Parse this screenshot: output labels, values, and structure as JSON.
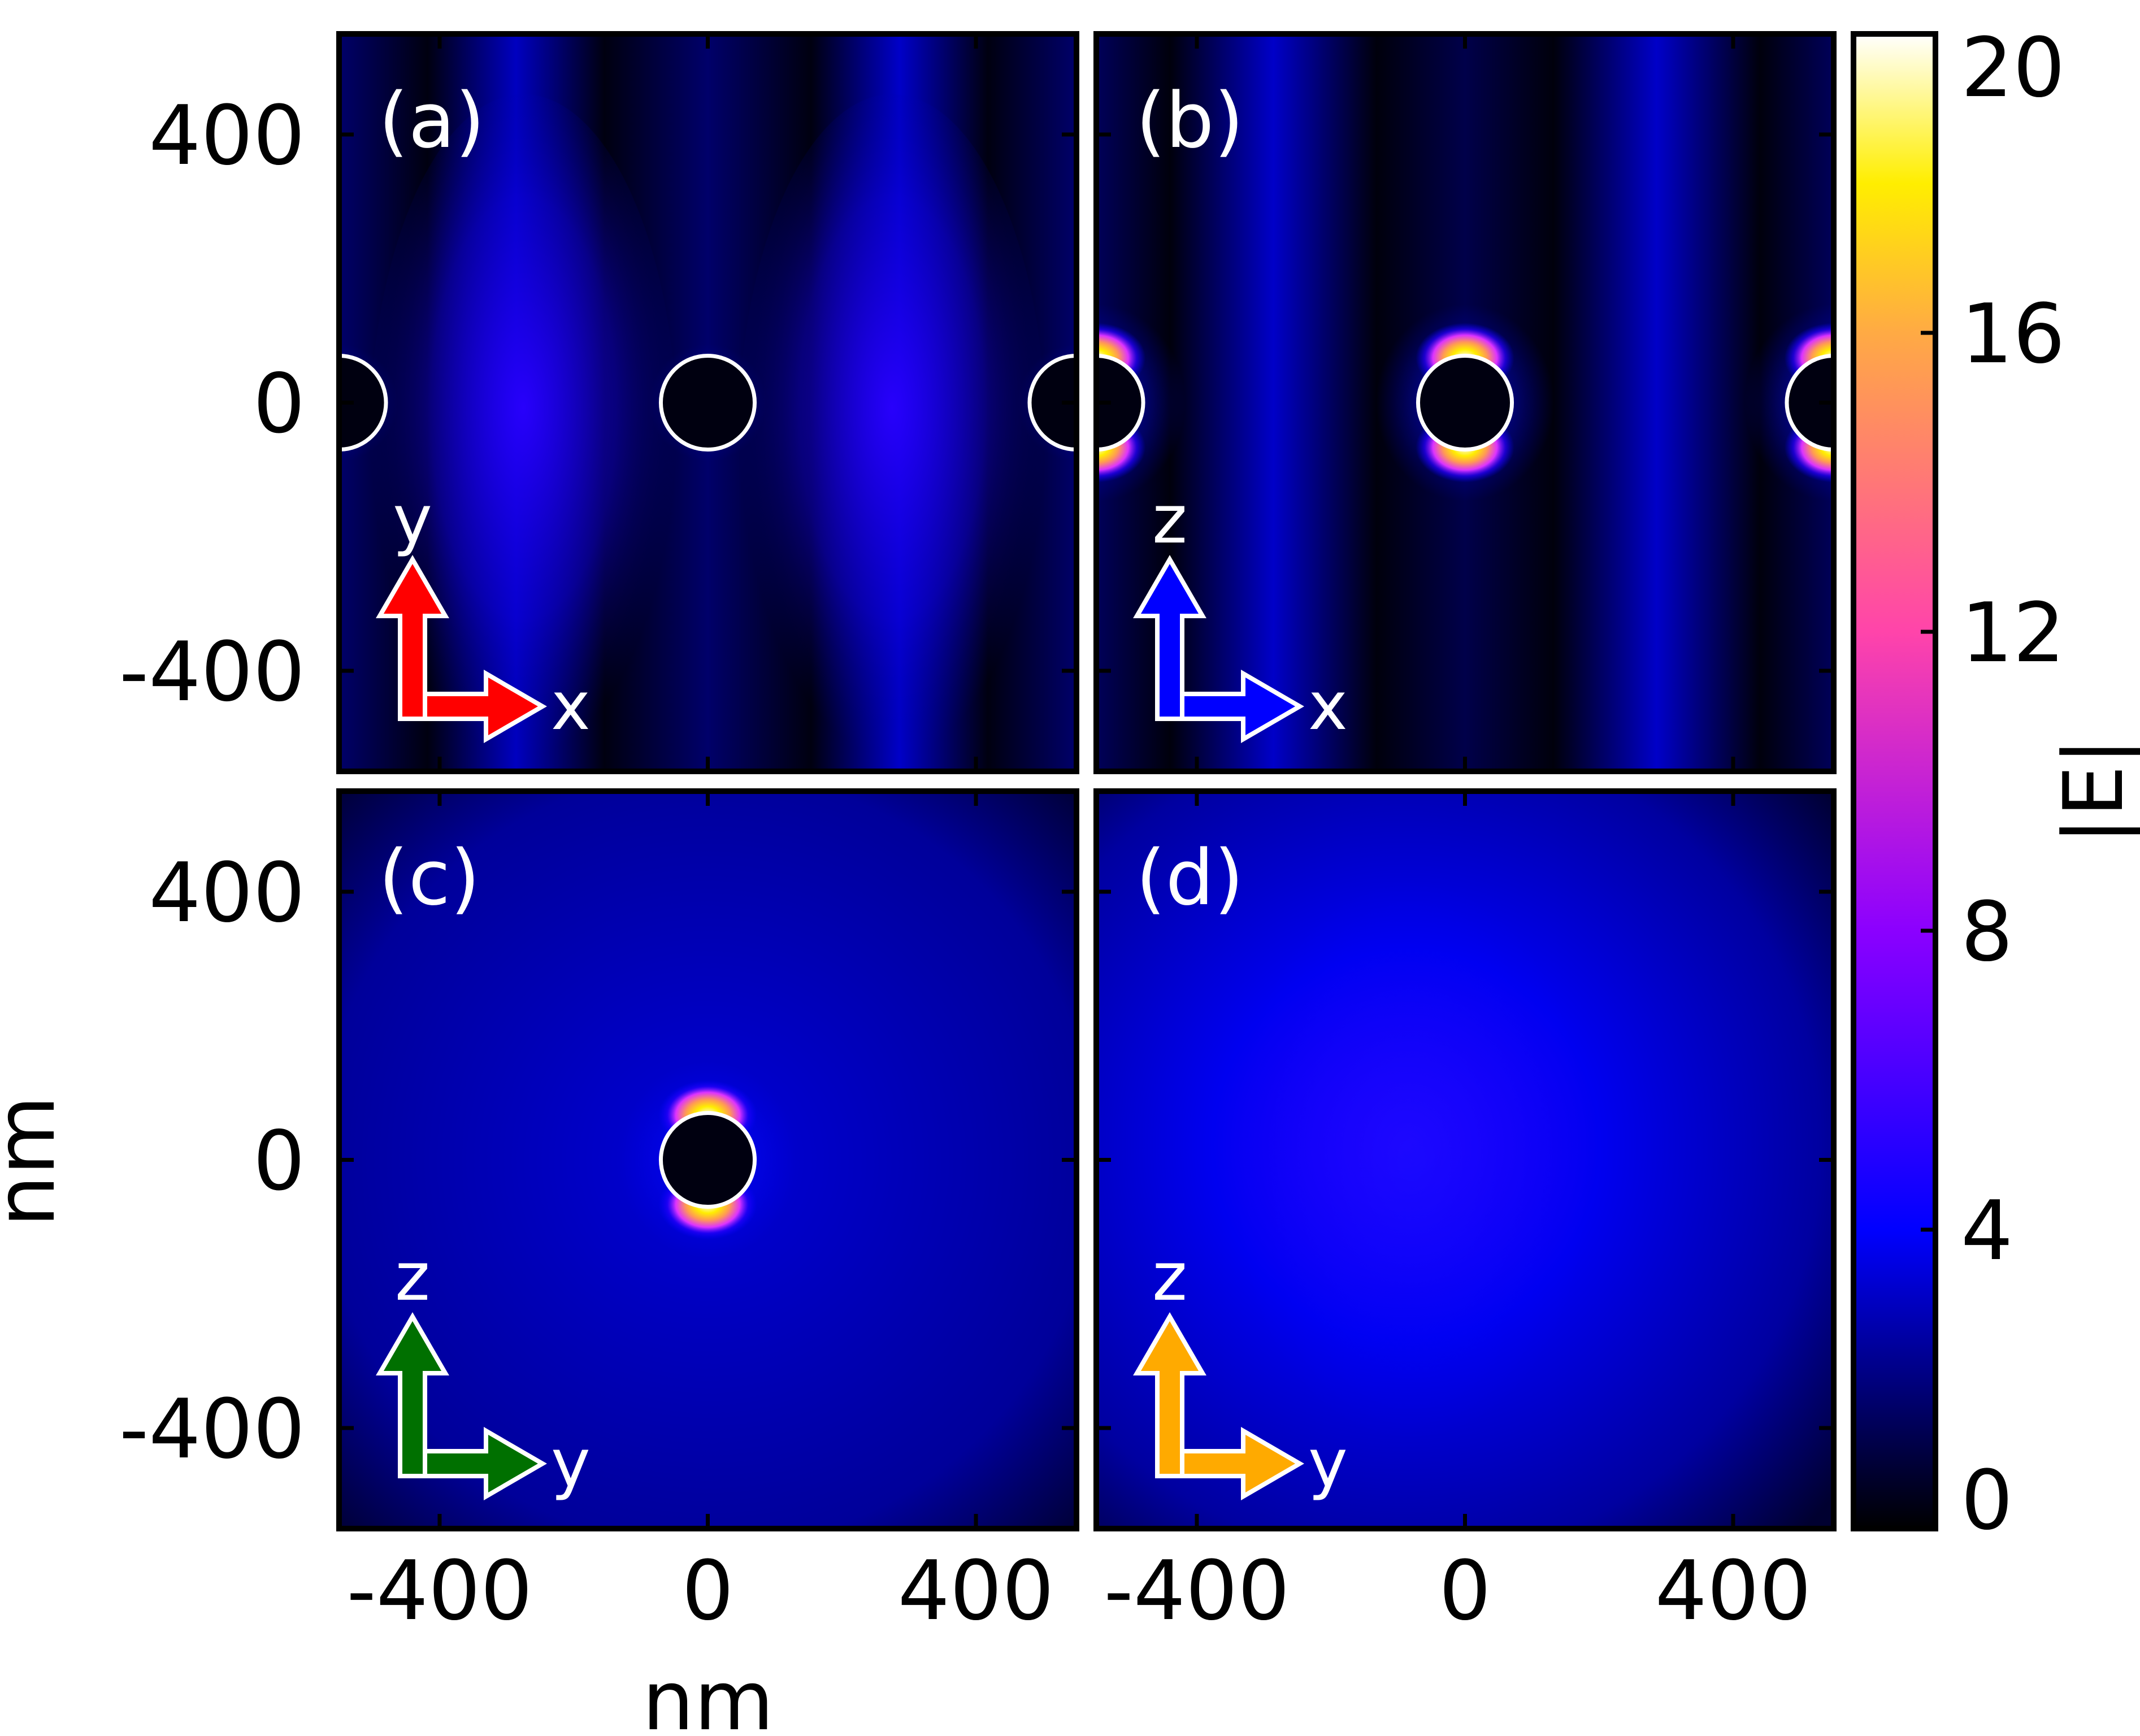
{
  "chart_data": {
    "type": "heatmap",
    "xlabel": "nm",
    "ylabel": "nm",
    "x_range": [
      -550,
      550
    ],
    "y_range": [
      -550,
      550
    ],
    "x_ticks": [
      -400,
      0,
      400
    ],
    "y_ticks": [
      -400,
      0,
      400
    ],
    "x_tick_labels": [
      "-400",
      "0",
      "400"
    ],
    "y_tick_labels": [
      "400",
      "0",
      "-400"
    ],
    "colorbar": {
      "label": "|E|",
      "range": [
        0,
        20
      ],
      "ticks": [
        0,
        4,
        8,
        12,
        16,
        20
      ],
      "tick_labels": [
        "0",
        "4",
        "8",
        "12",
        "16",
        "20"
      ],
      "colormap": [
        {
          "value": 0,
          "color": "#000000"
        },
        {
          "value": 4,
          "color": "#0000ff"
        },
        {
          "value": 8,
          "color": "#8b00ff"
        },
        {
          "value": 12,
          "color": "#ff44aa"
        },
        {
          "value": 16,
          "color": "#ffaa44"
        },
        {
          "value": 18,
          "color": "#ffee00"
        },
        {
          "value": 20,
          "color": "#ffffff"
        }
      ]
    },
    "panels": [
      {
        "label": "(a)",
        "plane": [
          "x",
          "y"
        ],
        "axes_arrow": {
          "horizontal": "x",
          "vertical": "y",
          "color": "#ff0000"
        },
        "particles_x": [
          -550,
          0,
          550
        ],
        "particle_radius": 70
      },
      {
        "label": "(b)",
        "plane": [
          "x",
          "z"
        ],
        "axes_arrow": {
          "horizontal": "x",
          "vertical": "z",
          "color": "#0000ff"
        },
        "particles_x": [
          -550,
          0,
          550
        ],
        "particle_radius": 70
      },
      {
        "label": "(c)",
        "plane": [
          "y",
          "z"
        ],
        "axes_arrow": {
          "horizontal": "y",
          "vertical": "z",
          "color": "#007000"
        },
        "particles_x": [
          0
        ],
        "particle_radius": 70
      },
      {
        "label": "(d)",
        "plane": [
          "y",
          "z"
        ],
        "axes_arrow": {
          "horizontal": "y",
          "vertical": "z",
          "color": "#ffaa00"
        },
        "particles_x": [],
        "particle_radius": 70
      }
    ]
  }
}
